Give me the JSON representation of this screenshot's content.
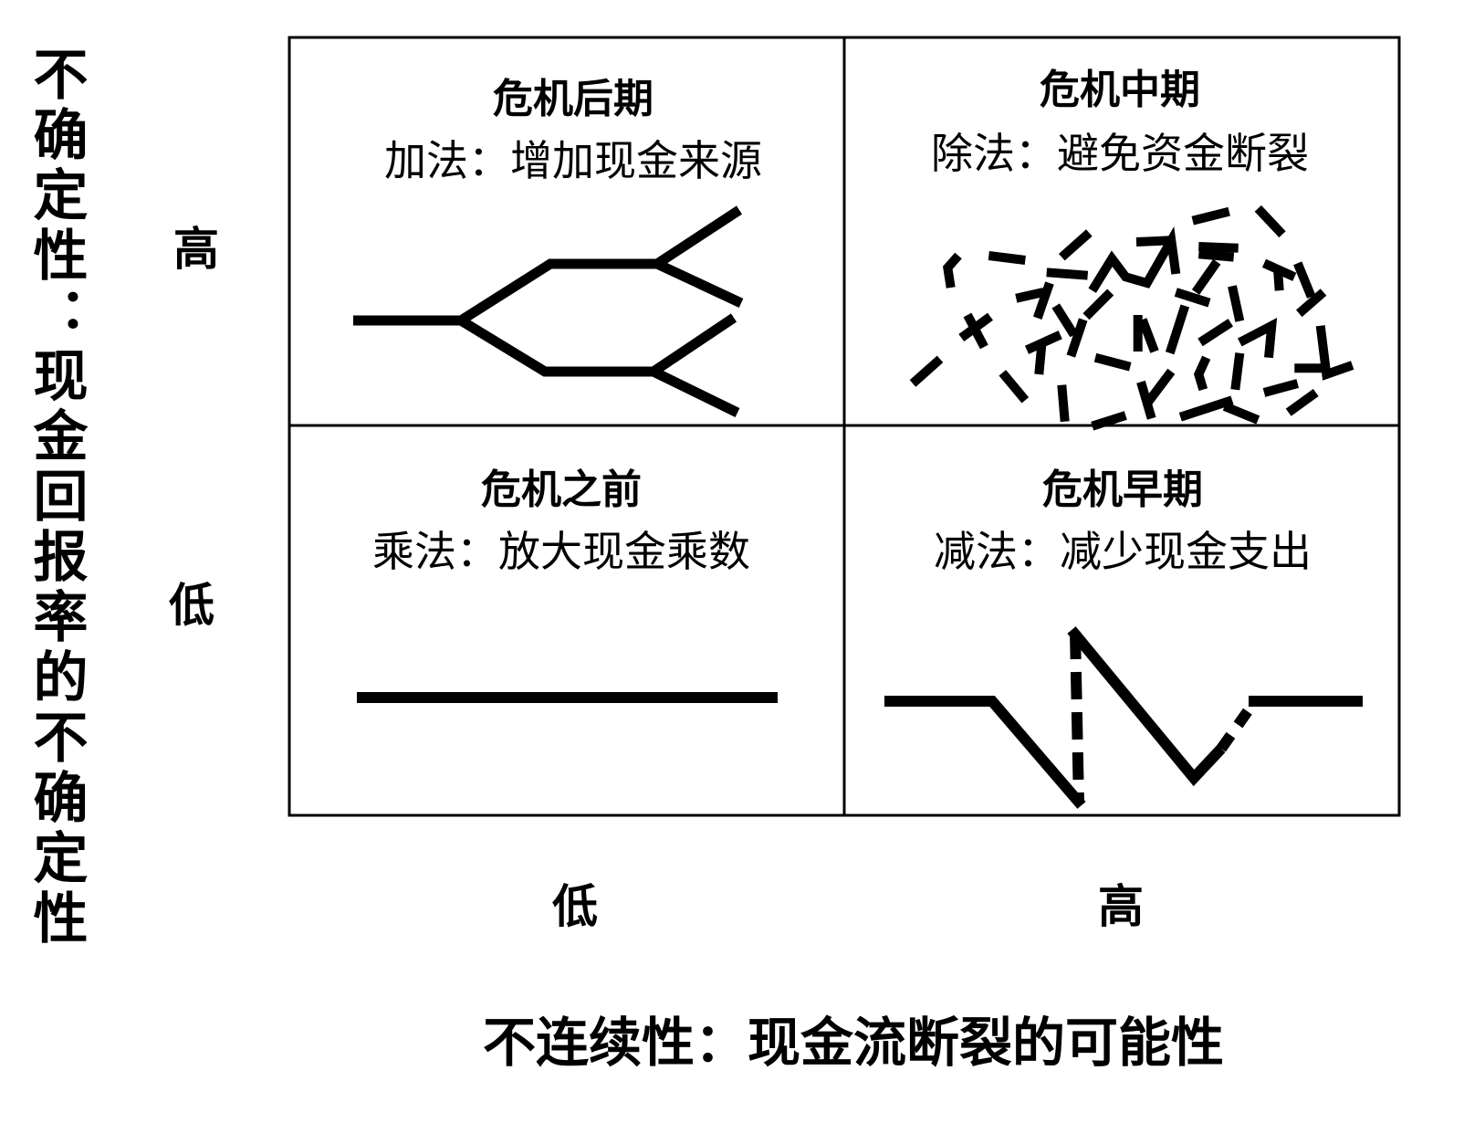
{
  "y_axis_label": "不确定性：现金回报率的不确定性",
  "x_axis_label": "不连续性：现金流断裂的可能性",
  "y_levels": {
    "high": "高",
    "low": "低"
  },
  "x_levels": {
    "low": "低",
    "high": "高"
  },
  "quadrants": {
    "top_left": {
      "title": "危机后期",
      "subtitle": "加法：增加现金来源"
    },
    "top_right": {
      "title": "危机中期",
      "subtitle": "除法：避免资金断裂"
    },
    "bottom_left": {
      "title": "危机之前",
      "subtitle": "乘法：放大现金乘数"
    },
    "bottom_right": {
      "title": "危机早期",
      "subtitle": "减法：减少现金支出"
    }
  },
  "colors": {
    "ink": "#000000",
    "background": "#ffffff"
  }
}
